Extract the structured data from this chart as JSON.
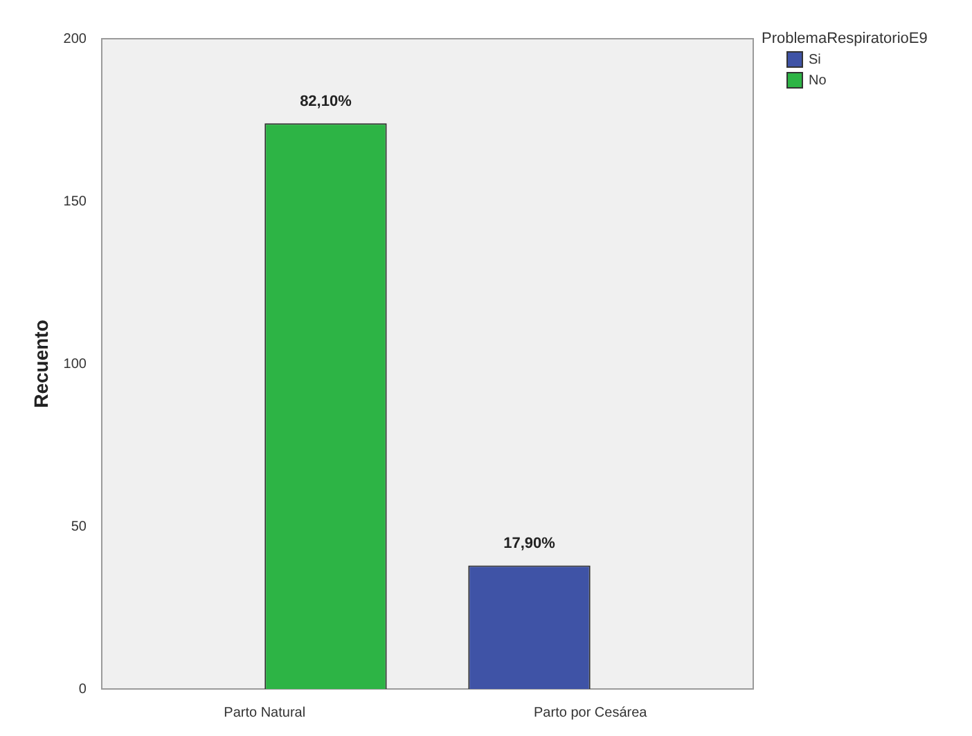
{
  "chart_data": {
    "type": "bar",
    "ylabel": "Recuento",
    "legend_title": "ProblemaRespiratorioE9",
    "categories": [
      "Parto Natural",
      "Parto por Cesárea"
    ],
    "series": [
      {
        "name": "Si",
        "color": "#3f53a6",
        "values": [
          null,
          38
        ]
      },
      {
        "name": "No",
        "color": "#2db445",
        "values": [
          174,
          null
        ]
      }
    ],
    "annotations": [
      {
        "text": "82,10%",
        "x": "Parto Natural",
        "y": 174
      },
      {
        "text": "17,90%",
        "x": "Parto por Cesárea",
        "y": 38
      }
    ],
    "ylim": [
      0,
      200
    ],
    "yticks": [
      0,
      50,
      100,
      150,
      200
    ],
    "grid": false,
    "legend": "top right"
  }
}
